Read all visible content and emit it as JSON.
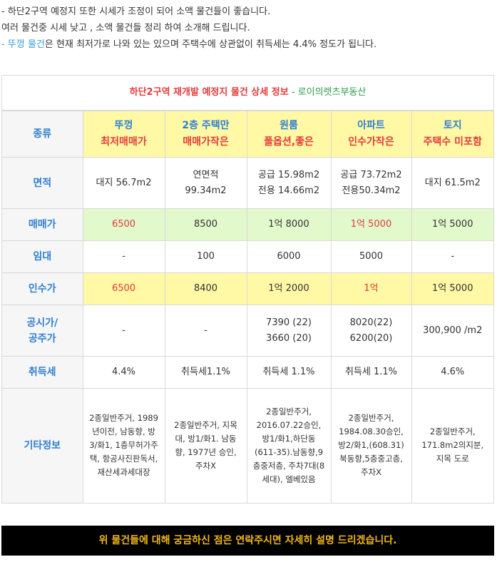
{
  "intro": {
    "line1": "- 하단2구역 예정지 또한 시세가 조정이 되어 소액 물건들이 좋습니다.",
    "line2": "여러 물건중 시세 낮고 , 소액 물건들 정리 하여 소개해 드립니다.",
    "line3_prefix": "- ",
    "line3_highlight": "뚜껑 물건",
    "line3_rest": "은 현재 최저가로 나와 있는 있으며 주택수에 상관없이 취득세는 4.4% 정도가 됩니다."
  },
  "caption": {
    "title": "하단2구역 재개발 예정지 물건 상세 정보",
    "separator": " - ",
    "subtitle": "로이의렛츠부동산"
  },
  "table": {
    "header": {
      "label": "종류",
      "columns": [
        {
          "line1": "뚜껑",
          "line2": "최저매매가"
        },
        {
          "line1": "2층 주택만",
          "line2": "매매가작은"
        },
        {
          "line1": "원룸",
          "line2": "풀옵션,좋은"
        },
        {
          "line1": "아파트",
          "line2": "인수가작은"
        },
        {
          "line1": "토지",
          "line2": "주택수 미포함"
        }
      ]
    },
    "area": {
      "label": "면적",
      "cells": [
        [
          "대지 56.7m2"
        ],
        [
          "연면적",
          "99.34m2"
        ],
        [
          "공급 15.98m2",
          "전용 14.66m2"
        ],
        [
          "공급 73.72m2",
          "전용50.34m2"
        ],
        [
          "대지 61.5m2"
        ]
      ]
    },
    "price": {
      "label": "매매가",
      "values": [
        "6500",
        "8500",
        "1억 8000",
        "1억 5000",
        "1억 5000"
      ]
    },
    "rent": {
      "label": "임대",
      "values": [
        "-",
        "100",
        "6000",
        "5000",
        "-"
      ]
    },
    "takeover": {
      "label": "인수가",
      "values": [
        "6500",
        "8400",
        "1억 2000",
        "1억",
        "1억 5000"
      ]
    },
    "official": {
      "label_line1": "공시가/",
      "label_line2": "공주가",
      "cells": [
        [
          "-"
        ],
        [
          "-"
        ],
        [
          "7390 (22)",
          "3660 (20)"
        ],
        [
          "8020(22)",
          "6200(20)"
        ],
        [
          "300,900 /m2"
        ]
      ]
    },
    "tax": {
      "label": "취득세",
      "values": [
        "4.4%",
        "취득세1.1%",
        "취득세 1.1%",
        "취득세 1.1%",
        "4.6%"
      ]
    },
    "misc": {
      "label": "기타정보",
      "values": [
        "2종일반주거, 1989년이전, 남동향, 방3/화1, 1층무허가주택, 항공사진판독서, 재산세과세대장",
        "2종일반주거, 지목 대, 방1/화1. 남동향, 1977년 승인, 주차X",
        "2종일반주거, 2016.07.22승인, 방1/화1,하단동(611-35).남동향,9층중저층, 주차7대(8세대), 엘베있음",
        "2종일반주거, 1984.08.30승인, 방2/화1,(608.31) 북동향,5층중고층,주차X",
        "2종일반주거, 171.8m2의지분, 지목 도로"
      ]
    }
  },
  "banner": {
    "text": "위 물건들에 대해 궁금하신 점은 연락주시면 자세히 설명 드리겠습니다."
  },
  "colors": {
    "accent_blue": "#2f7fd0",
    "accent_red": "#e23b3b",
    "accent_green": "#2e9b4f",
    "highlight_yellow": "#fff9a6",
    "highlight_green": "#e2f9cc",
    "banner_text": "#f2b81a"
  }
}
